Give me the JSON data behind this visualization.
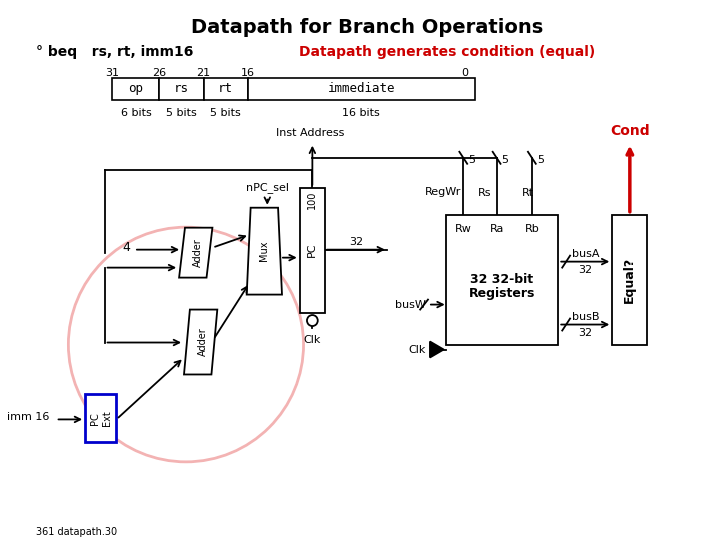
{
  "title": "Datapath for Branch Operations",
  "subtitle_left": "° beq   rs, rt, imm16",
  "subtitle_right": "Datapath generates condition (equal)",
  "subtitle_right_color": "#cc0000",
  "bg_color": "#ffffff",
  "footnote": "361 datapath.30",
  "inst_address_label": "Inst Address",
  "cond_label": "Cond",
  "npc_sel_label": "nPC_sel",
  "label_4": "4",
  "adder1_label": "Adder",
  "adder2_label": "Adder",
  "mux_label": "Mux",
  "pc_label": "PC",
  "pc_init": "100",
  "pc_ext_label": "PC\nExt",
  "imm16_label": "imm 16",
  "clk_label": "Clk",
  "reg_line1": "32 32-bit",
  "reg_line2": "Registers",
  "regwr_label": "RegWr",
  "rs_label": "Rs",
  "rt_label": "Rt",
  "rw_label": "Rw",
  "ra_label": "Ra",
  "rb_label": "Rb",
  "busw_label": "busW",
  "busa_label": "busA",
  "busb_label": "busB",
  "bus32": "32",
  "equal_label": "Equal?",
  "five": "5"
}
